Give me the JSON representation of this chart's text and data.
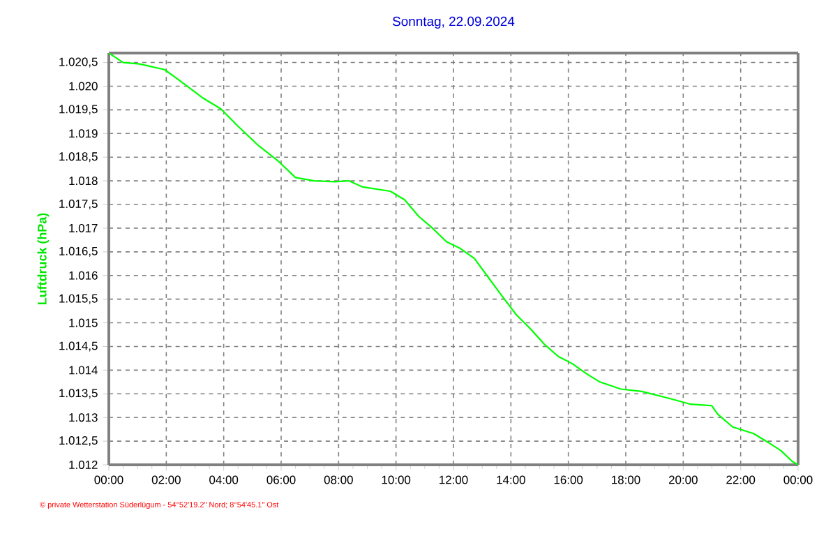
{
  "chart_data": {
    "type": "line",
    "title": "Sonntag, 22.09.2024",
    "ylabel": "Luftdruck (hPa)",
    "annotations": [
      "© private Wetterstation Süderlügum - 54°52'19.2\" Nord; 8°54'45.1\" Ost"
    ],
    "x": [
      0,
      0.5,
      1.07,
      1.94,
      2.4,
      3.25,
      3.9,
      4.47,
      5.2,
      5.93,
      6.5,
      7.15,
      7.87,
      8.36,
      8.84,
      9.8,
      10.3,
      10.79,
      11.27,
      11.76,
      12.24,
      12.73,
      13.2,
      13.7,
      14.19,
      14.67,
      15.16,
      15.65,
      16.13,
      16.62,
      17.1,
      17.83,
      18.56,
      19.53,
      20.26,
      20.99,
      21.2,
      21.72,
      22.45,
      22.94,
      23.4,
      23.8,
      24
    ],
    "series": [
      {
        "color": "#00ff00",
        "values": [
          1020.7,
          1020.5,
          1020.47,
          1020.35,
          1020.15,
          1019.76,
          1019.52,
          1019.17,
          1018.75,
          1018.4,
          1018.07,
          1018.0,
          1017.98,
          1018.0,
          1017.87,
          1017.78,
          1017.6,
          1017.25,
          1017.0,
          1016.71,
          1016.57,
          1016.36,
          1015.97,
          1015.56,
          1015.17,
          1014.88,
          1014.55,
          1014.29,
          1014.14,
          1013.93,
          1013.75,
          1013.6,
          1013.55,
          1013.4,
          1013.28,
          1013.25,
          1013.07,
          1012.8,
          1012.66,
          1012.48,
          1012.3,
          1012.07,
          1012.0
        ]
      }
    ],
    "xlim": [
      0,
      24
    ],
    "xticks": [
      {
        "value": 0,
        "label": "00:00"
      },
      {
        "value": 2,
        "label": "02:00"
      },
      {
        "value": 4,
        "label": "04:00"
      },
      {
        "value": 6,
        "label": "06:00"
      },
      {
        "value": 8,
        "label": "08:00"
      },
      {
        "value": 10,
        "label": "10:00"
      },
      {
        "value": 12,
        "label": "12:00"
      },
      {
        "value": 14,
        "label": "14:00"
      },
      {
        "value": 16,
        "label": "16:00"
      },
      {
        "value": 18,
        "label": "18:00"
      },
      {
        "value": 20,
        "label": "20:00"
      },
      {
        "value": 22,
        "label": "22:00"
      },
      {
        "value": 24,
        "label": "00:00"
      }
    ],
    "ylim": [
      1012,
      1020.7
    ],
    "yticks": [
      {
        "value": 1012,
        "label": "1.012"
      },
      {
        "value": 1012.5,
        "label": "1.012,5"
      },
      {
        "value": 1013,
        "label": "1.013"
      },
      {
        "value": 1013.5,
        "label": "1.013,5"
      },
      {
        "value": 1014,
        "label": "1.014"
      },
      {
        "value": 1014.5,
        "label": "1.014,5"
      },
      {
        "value": 1015,
        "label": "1.015"
      },
      {
        "value": 1015.5,
        "label": "1.015,5"
      },
      {
        "value": 1016,
        "label": "1.016"
      },
      {
        "value": 1016.5,
        "label": "1.016,5"
      },
      {
        "value": 1017,
        "label": "1.017"
      },
      {
        "value": 1017.5,
        "label": "1.017,5"
      },
      {
        "value": 1018,
        "label": "1.018"
      },
      {
        "value": 1018.5,
        "label": "1.018,5"
      },
      {
        "value": 1019,
        "label": "1.019"
      },
      {
        "value": 1019.5,
        "label": "1.019,5"
      },
      {
        "value": 1020,
        "label": "1.020"
      },
      {
        "value": 1020.5,
        "label": "1.020,5"
      }
    ],
    "grid": true,
    "marker": "none",
    "line_style": "solid"
  }
}
